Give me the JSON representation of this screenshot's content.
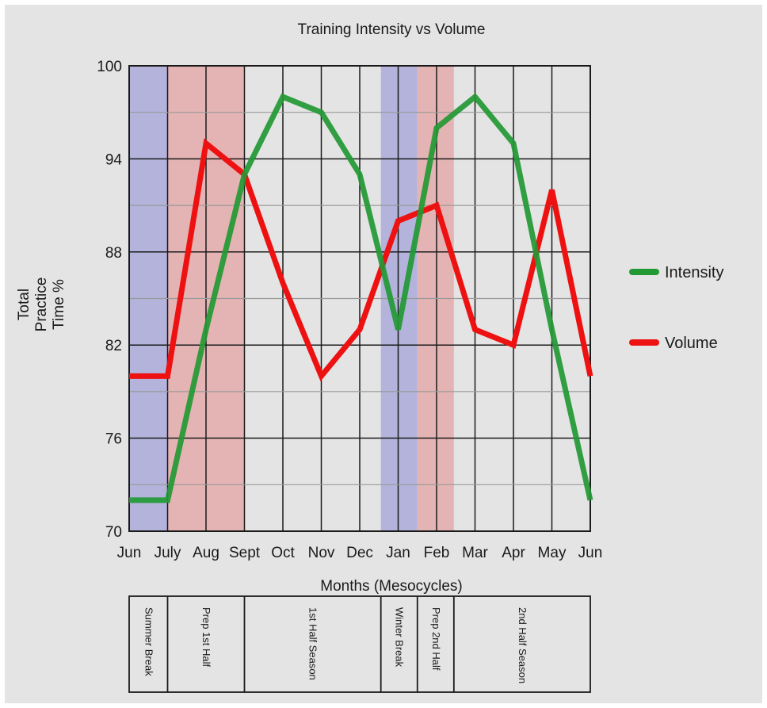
{
  "chart_data": {
    "type": "line",
    "title": "Training Intensity vs Volume",
    "xlabel": "Months (Mesocycles)",
    "ylabel_lines": [
      "Total",
      "Practice",
      "Time %"
    ],
    "categories": [
      "Jun",
      "July",
      "Aug",
      "Sept",
      "Oct",
      "Nov",
      "Dec",
      "Jan",
      "Feb",
      "Mar",
      "Apr",
      "May",
      "Jun"
    ],
    "ylim": [
      70,
      100
    ],
    "yticks": [
      70,
      76,
      82,
      88,
      94,
      100
    ],
    "grid": true,
    "legend_position": "right",
    "series": [
      {
        "name": "Intensity",
        "color": "#229933",
        "values": [
          72,
          72,
          83,
          93,
          98,
          97,
          93,
          83,
          96,
          98,
          95,
          83,
          72
        ]
      },
      {
        "name": "Volume",
        "color": "#ee1111",
        "values": [
          80,
          80,
          95,
          93,
          86,
          80,
          83,
          90,
          91,
          83,
          82,
          92,
          80
        ]
      }
    ],
    "shaded_regions": [
      {
        "from": 0,
        "to": 1,
        "color": "#b3b3dc"
      },
      {
        "from": 1,
        "to": 3,
        "color": "#e4b3b3"
      },
      {
        "from": 6.55,
        "to": 7.5,
        "color": "#b3b3dc"
      },
      {
        "from": 7.5,
        "to": 8.45,
        "color": "#e4b3b3"
      }
    ],
    "phases": [
      {
        "label": "Summer Break",
        "from": 0,
        "to": 1
      },
      {
        "label": "Prep 1st Half",
        "from": 1,
        "to": 3
      },
      {
        "label": "1st Half Season",
        "from": 3,
        "to": 6.55
      },
      {
        "label": "Winter Break",
        "from": 6.55,
        "to": 7.5
      },
      {
        "label": "Prep 2nd Half",
        "from": 7.5,
        "to": 8.45
      },
      {
        "label": "2nd Half Season",
        "from": 8.45,
        "to": 12
      }
    ]
  }
}
